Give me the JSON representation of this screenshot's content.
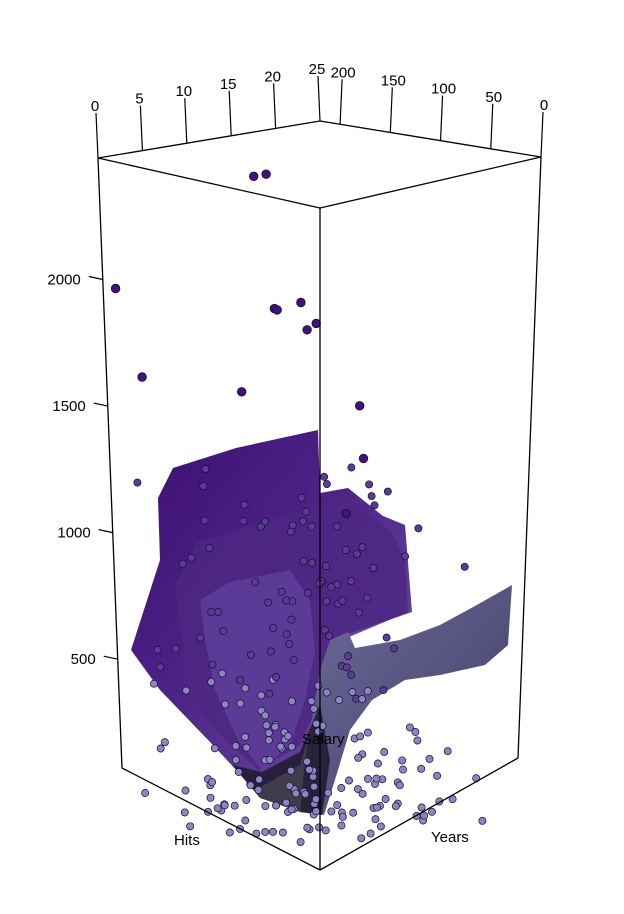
{
  "chart_data": {
    "type": "scatter",
    "title": "",
    "dimensions": "3d",
    "axes": {
      "years": {
        "label": "Years",
        "ticks": [
          "0",
          "5",
          "10",
          "15",
          "20",
          "25"
        ],
        "range": [
          0,
          25
        ]
      },
      "hits": {
        "label": "Hits",
        "ticks": [
          "200",
          "150",
          "100",
          "50",
          "0"
        ],
        "range": [
          0,
          220
        ]
      },
      "salary": {
        "label": "Salary",
        "ticks": [
          "500",
          "1000",
          "1500",
          "2000"
        ],
        "range": [
          70,
          2480
        ]
      }
    },
    "surface": {
      "description": "fitted regression-tree surface of Salary over Hits and Years",
      "colors": {
        "high": "#3d0d73",
        "mid": "#5b3a94",
        "low": "#4a4570",
        "light": "#8a86ad"
      }
    },
    "points": {
      "color_high": "#3f1378",
      "color_low": "#8c86c0",
      "stroke": "#1a0a35",
      "samples": [
        {
          "years": 4.3,
          "hits": 103,
          "salary": 2460
        },
        {
          "years": 5.7,
          "hits": 103,
          "salary": 2460
        },
        {
          "years": 0.4,
          "hits": 206,
          "salary": 2011
        },
        {
          "years": 8.1,
          "hits": 116,
          "salary": 1950
        },
        {
          "years": 8.3,
          "hits": 115,
          "salary": 1945
        },
        {
          "years": 11.0,
          "hits": 100,
          "salary": 1890
        },
        {
          "years": 10.2,
          "hits": 102,
          "salary": 1870
        },
        {
          "years": 11.2,
          "hits": 117,
          "salary": 1955
        },
        {
          "years": 2.7,
          "hits": 200,
          "salary": 1680
        },
        {
          "years": 6.0,
          "hits": 130,
          "salary": 1650
        },
        {
          "years": 12.5,
          "hits": 70,
          "salary": 1600
        },
        {
          "years": 13.5,
          "hits": 75,
          "salary": 1400
        },
        {
          "years": 17.1,
          "hits": 124,
          "salary": 1150
        }
      ]
    }
  }
}
